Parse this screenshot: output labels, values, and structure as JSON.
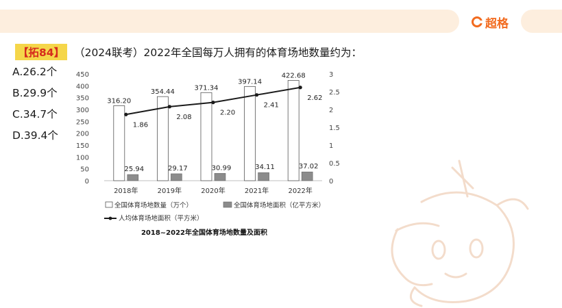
{
  "brand": {
    "name": "超格"
  },
  "question": {
    "tag": "【拓84】",
    "text": "（2024联考）2022年全国每万人拥有的体育场地数量约为："
  },
  "options": [
    "A.26.2个",
    "B.29.9个",
    "C.34.7个",
    "D.39.4个"
  ],
  "colors": {
    "accent": "#f26b1f",
    "tag_bg": "#f5d64a",
    "tag_text": "#d62b1d",
    "band": "#fdeede"
  },
  "chart_data": {
    "type": "bar",
    "title": "2018~2022年全国体育场地数量及面积",
    "categories": [
      "2018年",
      "2019年",
      "2020年",
      "2021年",
      "2022年"
    ],
    "ylim_left": [
      0,
      450
    ],
    "yticks_left": [
      "0",
      "50",
      "100",
      "150",
      "200",
      "250",
      "300",
      "350",
      "400",
      "450"
    ],
    "ylim_right": [
      0,
      3
    ],
    "yticks_right": [
      "0",
      "0.5",
      "1",
      "1.5",
      "2",
      "2.5",
      "3"
    ],
    "series": [
      {
        "name": "全国体育场地数量（万个）",
        "kind": "bar",
        "axis": "left",
        "color": "#ffffff",
        "values": [
          316.2,
          354.44,
          371.34,
          397.14,
          422.68
        ],
        "labels": [
          "316.20",
          "354.44",
          "371.34",
          "397.14",
          "422.68"
        ]
      },
      {
        "name": "全国体育场地面积（亿平方米）",
        "kind": "bar",
        "axis": "left",
        "color": "#8c8c8c",
        "values": [
          25.94,
          29.17,
          30.99,
          34.11,
          37.02
        ],
        "labels": [
          "25.94",
          "29.17",
          "30.99",
          "34.11",
          "37.02"
        ]
      },
      {
        "name": "人均体育场地面积（平方米）",
        "kind": "line",
        "axis": "right",
        "color": "#1a1a1a",
        "values": [
          1.86,
          2.08,
          2.2,
          2.41,
          2.62
        ],
        "labels": [
          "1.86",
          "2.08",
          "2.20",
          "2.41",
          "2.62"
        ]
      }
    ],
    "grid": false,
    "legend_position": "bottom"
  }
}
